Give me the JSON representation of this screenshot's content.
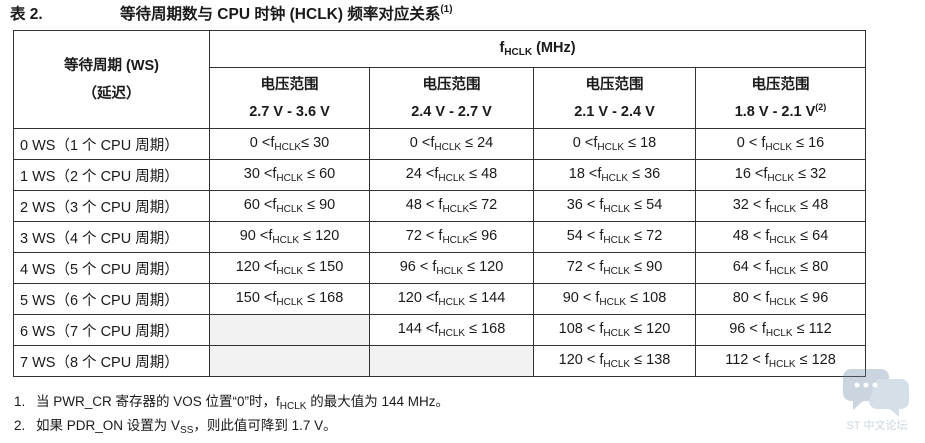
{
  "title": {
    "number": "表 2.",
    "text_before": "等待周期数与 CPU 时钟 (HCLK) 频率对应关系",
    "footnote_ref": "(1)"
  },
  "table": {
    "ws_header": [
      "等待周期 (WS)",
      "（延迟）"
    ],
    "freq_header": {
      "f": "f",
      "sub": "HCLK",
      "unit": " (MHz)"
    },
    "ranges": [
      {
        "label": "电压范围",
        "range": "2.7 V - 3.6 V",
        "sup": ""
      },
      {
        "label": "电压范围",
        "range": "2.4 V - 2.7 V",
        "sup": ""
      },
      {
        "label": "电压范围",
        "range": "2.1 V - 2.4 V",
        "sup": ""
      },
      {
        "label": "电压范围",
        "range": "1.8 V - 2.1 V",
        "sup": "(2)"
      }
    ],
    "rows": [
      {
        "ws": "0 WS（1 个 CPU 周期）",
        "cells": [
          {
            "pre": "0 <f",
            "sub": "HCLK",
            "post": "≤ 30"
          },
          {
            "pre": "0 <f",
            "sub": "HCLK",
            "post": " ≤ 24"
          },
          {
            "pre": "0 <f",
            "sub": "HCLK",
            "post": " ≤ 18"
          },
          {
            "pre": "0 < f",
            "sub": "HCLK",
            "post": " ≤ 16"
          }
        ]
      },
      {
        "ws": "1 WS（2 个 CPU 周期）",
        "cells": [
          {
            "pre": "30 <f",
            "sub": "HCLK",
            "post": " ≤ 60"
          },
          {
            "pre": "24 <f",
            "sub": "HCLK",
            "post": " ≤ 48"
          },
          {
            "pre": "18 <f",
            "sub": "HCLK",
            "post": " ≤ 36"
          },
          {
            "pre": "16 <f",
            "sub": "HCLK",
            "post": " ≤ 32"
          }
        ]
      },
      {
        "ws": "2 WS（3 个 CPU 周期）",
        "cells": [
          {
            "pre": "60 <f",
            "sub": "HCLK",
            "post": " ≤ 90"
          },
          {
            "pre": "48 < f",
            "sub": "HCLK",
            "post": "≤ 72"
          },
          {
            "pre": "36 < f",
            "sub": "HCLK",
            "post": " ≤ 54"
          },
          {
            "pre": "32 < f",
            "sub": "HCLK",
            "post": " ≤ 48"
          }
        ]
      },
      {
        "ws": "3 WS（4 个 CPU 周期）",
        "cells": [
          {
            "pre": "90 <f",
            "sub": "HCLK",
            "post": " ≤ 120"
          },
          {
            "pre": "72 < f",
            "sub": "HCLK",
            "post": "≤ 96"
          },
          {
            "pre": "54 < f",
            "sub": "HCLK",
            "post": " ≤ 72"
          },
          {
            "pre": "48 < f",
            "sub": "HCLK",
            "post": " ≤ 64"
          }
        ]
      },
      {
        "ws": "4 WS（5 个 CPU 周期）",
        "cells": [
          {
            "pre": "120 <f",
            "sub": "HCLK",
            "post": " ≤ 150"
          },
          {
            "pre": "96 < f",
            "sub": "HCLK",
            "post": " ≤ 120"
          },
          {
            "pre": "72 < f",
            "sub": "HCLK",
            "post": " ≤ 90"
          },
          {
            "pre": "64 < f",
            "sub": "HCLK",
            "post": " ≤ 80"
          }
        ]
      },
      {
        "ws": "5 WS（6 个 CPU 周期）",
        "cells": [
          {
            "pre": "150 <f",
            "sub": "HCLK",
            "post": " ≤ 168"
          },
          {
            "pre": "120 <f",
            "sub": "HCLK",
            "post": " ≤ 144"
          },
          {
            "pre": "90 < f",
            "sub": "HCLK",
            "post": " ≤ 108"
          },
          {
            "pre": "80 < f",
            "sub": "HCLK",
            "post": " ≤ 96"
          }
        ]
      },
      {
        "ws": "6 WS（7 个 CPU 周期）",
        "cells": [
          null,
          {
            "pre": "144 <f",
            "sub": "HCLK",
            "post": " ≤ 168"
          },
          {
            "pre": "108 < f",
            "sub": "HCLK",
            "post": " ≤ 120"
          },
          {
            "pre": "96 < f",
            "sub": "HCLK",
            "post": " ≤ 112"
          }
        ]
      },
      {
        "ws": "7 WS（8 个 CPU 周期）",
        "cells": [
          null,
          null,
          {
            "pre": "120 < f",
            "sub": "HCLK",
            "post": " ≤ 138"
          },
          {
            "pre": "112 < f",
            "sub": "HCLK",
            "post": " ≤ 128"
          }
        ]
      }
    ]
  },
  "notes": [
    {
      "num": "1.",
      "pre": "当 PWR_CR 寄存器的 VOS 位置“0”时，f",
      "sub": "HCLK",
      "post": " 的最大值为 144 MHz。"
    },
    {
      "num": "2.",
      "pre": "如果 PDR_ON 设置为 V",
      "sub": "SS",
      "post": "，则此值可降到 1.7 V。"
    }
  ],
  "watermark": {
    "text": "ST 中文论坛",
    "color": "#6a8aa8"
  }
}
